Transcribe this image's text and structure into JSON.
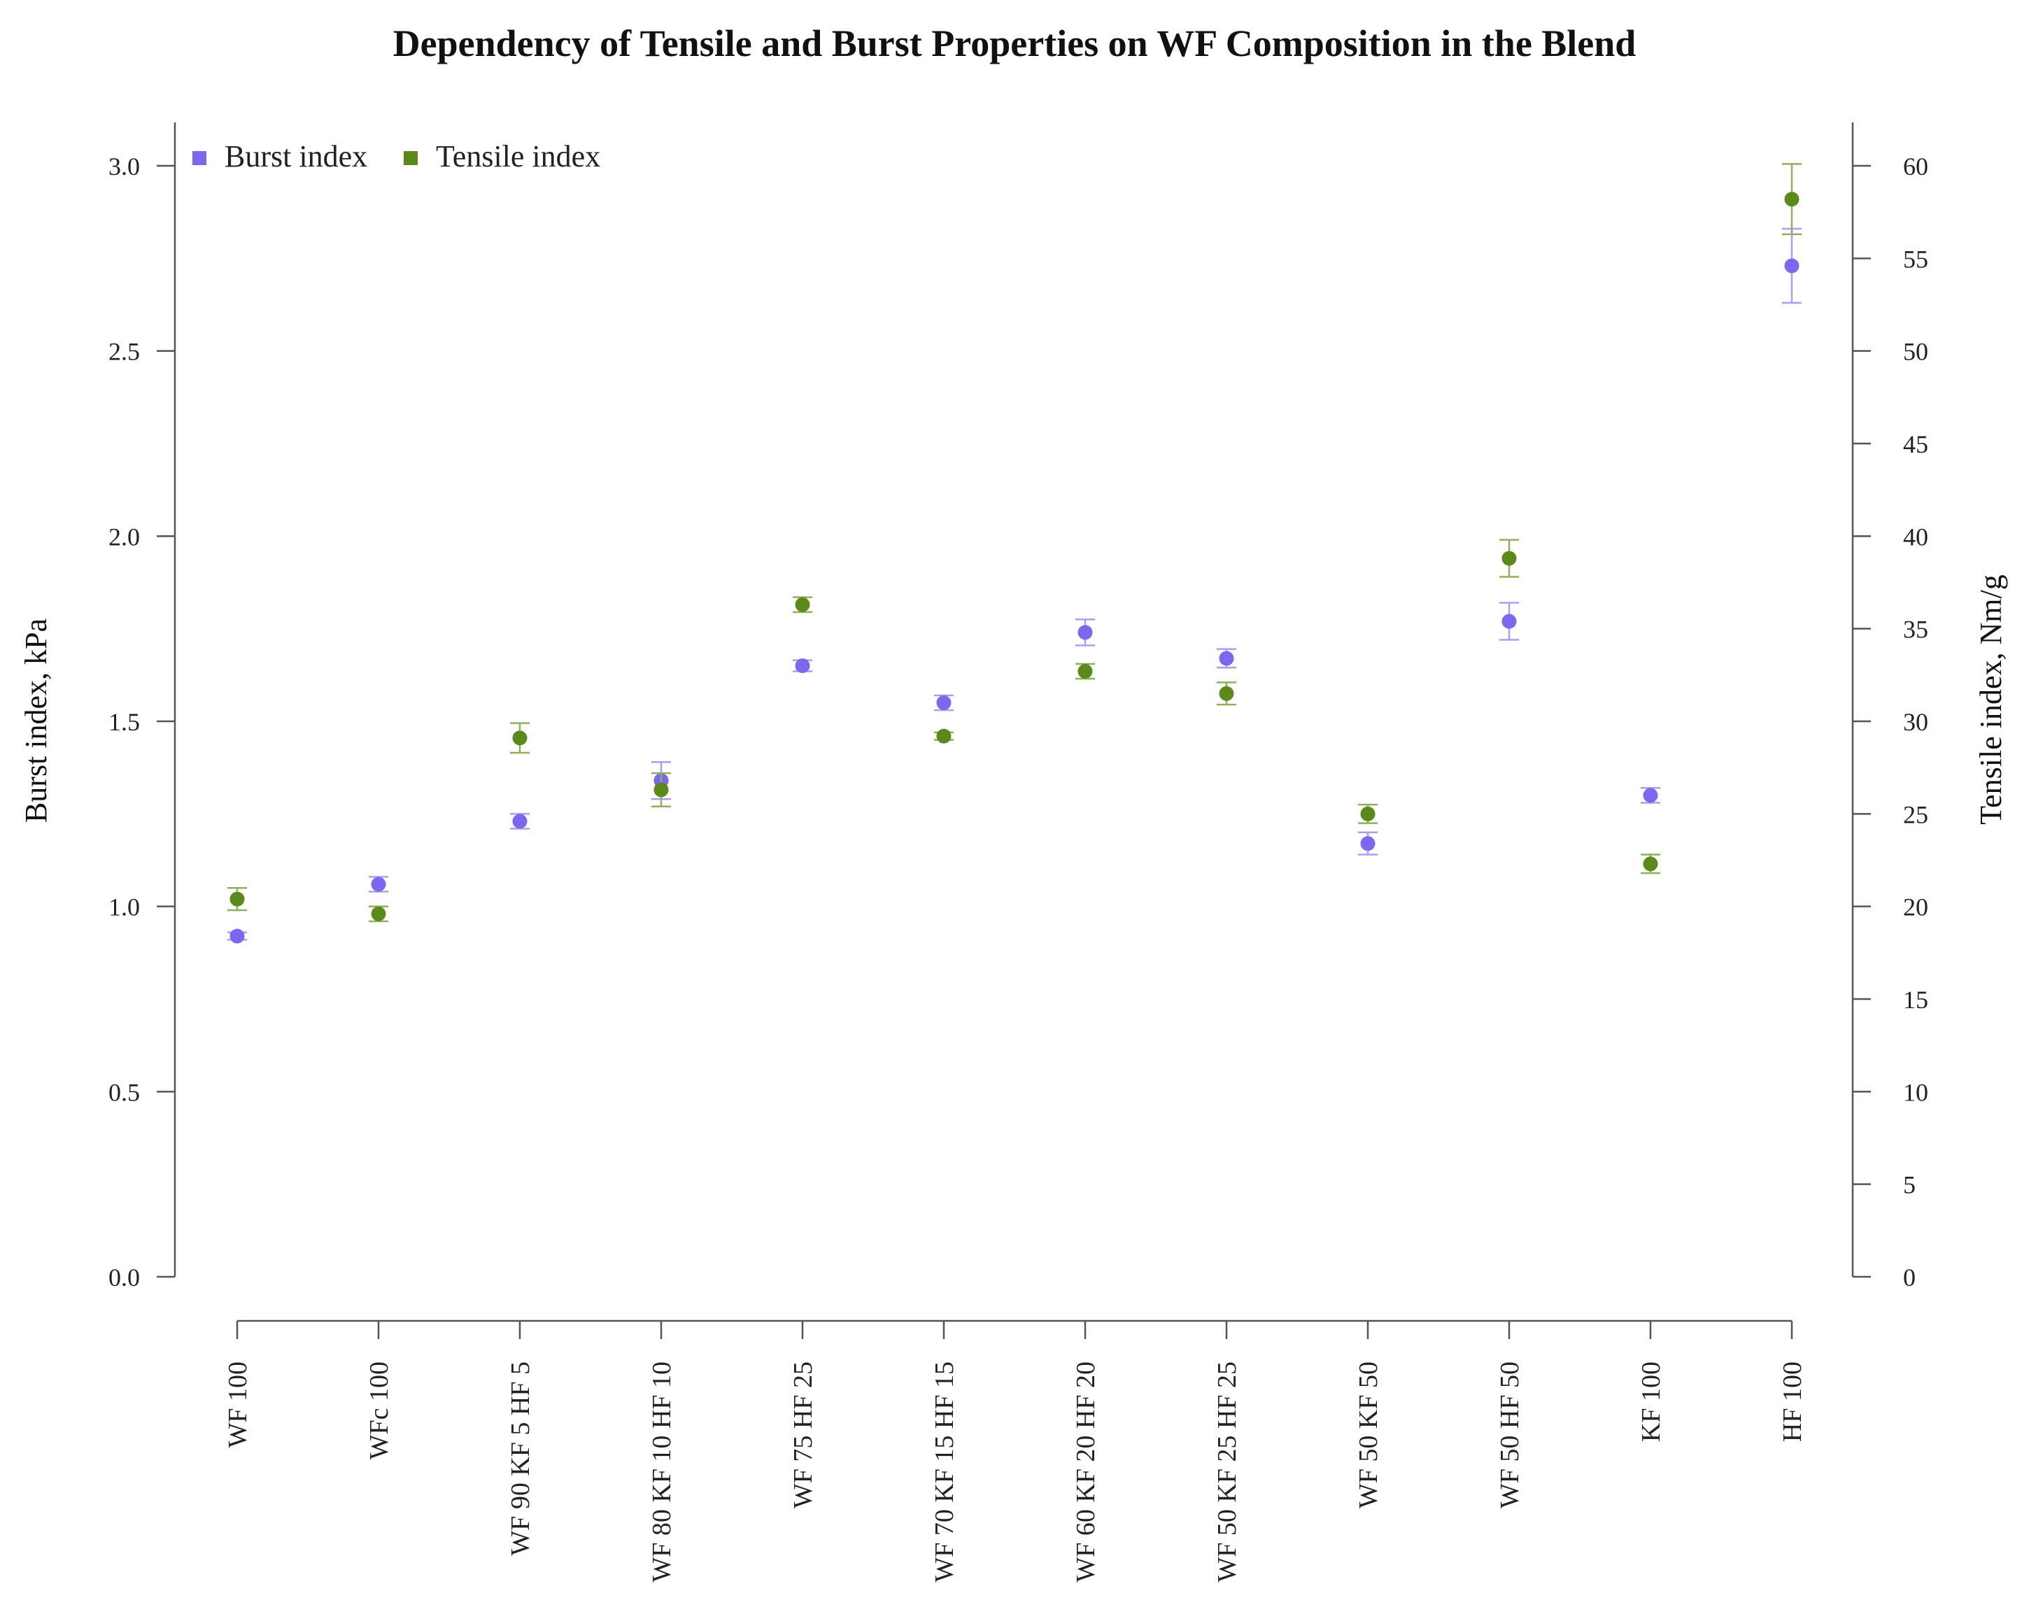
{
  "chart_data": {
    "type": "scatter",
    "title": "Dependency of Tensile and Burst Properties on WF Composition in the Blend",
    "ylabel_left": "Burst index, kPa",
    "ylabel_right": "Tensile index, Nm/g",
    "ylim_left": [
      0,
      3.0
    ],
    "ylim_right": [
      0,
      60
    ],
    "yticks_left": [
      "0.0",
      "0.5",
      "1.0",
      "1.5",
      "2.0",
      "2.5",
      "3.0"
    ],
    "yticks_right": [
      "0",
      "5",
      "10",
      "15",
      "20",
      "25",
      "30",
      "35",
      "40",
      "45",
      "50",
      "55",
      "60"
    ],
    "grid": false,
    "legend_position": "top-left",
    "categories": [
      "WF 100",
      "WFc 100",
      "WF 90 KF 5 HF 5",
      "WF 80 KF 10 HF 10",
      "WF 75 HF 25",
      "WF 70 KF 15 HF 15",
      "WF 60 KF 20 HF 20",
      "WF 50 KF 25 HF 25",
      "WF 50 KF 50",
      "WF 50 HF 50",
      "KF 100",
      "HF 100"
    ],
    "series": [
      {
        "name": "Burst index",
        "axis": "left",
        "color": "#7b68ee",
        "values": [
          0.92,
          1.06,
          1.23,
          1.34,
          1.65,
          1.55,
          1.74,
          1.67,
          1.17,
          1.77,
          1.3,
          2.73
        ],
        "errors": [
          0.01,
          0.02,
          0.02,
          0.05,
          0.015,
          0.02,
          0.035,
          0.025,
          0.03,
          0.05,
          0.02,
          0.1
        ]
      },
      {
        "name": "Tensile index",
        "axis": "right",
        "color": "#5b8a1a",
        "values": [
          20.4,
          19.6,
          29.1,
          26.3,
          36.3,
          29.2,
          32.7,
          31.5,
          25.0,
          38.8,
          22.3,
          58.2
        ],
        "errors": [
          0.6,
          0.4,
          0.8,
          0.9,
          0.4,
          0.2,
          0.4,
          0.6,
          0.5,
          1.0,
          0.5,
          1.9
        ]
      }
    ]
  }
}
